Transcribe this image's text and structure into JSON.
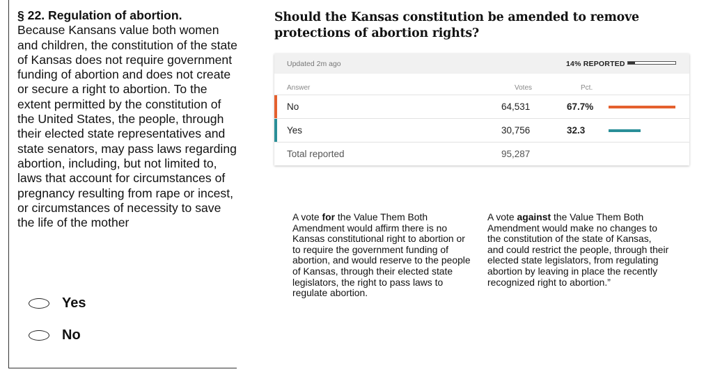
{
  "ballot": {
    "heading": "§ 22. Regulation of abortion.",
    "body": "Because Kansans value both women and children, the constitution of the state of Kansas does not require government funding of abortion and does not create or secure a right to abortion. To the extent permitted by the constitution of the United States, the people, through their elected state representatives and state senators, may pass laws regarding abortion, including, but not limited to, laws that account for circumstances of pregnancy resulting from rape or incest, or circumstances of necessity to save the life of the mother",
    "options": [
      "Yes",
      "No"
    ]
  },
  "results": {
    "question": "Should the Kansas constitution be amended to remove protections of abortion rights?",
    "updated": "Updated 2m ago",
    "reported_label": "14% REPORTED",
    "reported_fraction": 0.14,
    "columns": {
      "answer": "Answer",
      "votes": "Votes",
      "pct": "Pct."
    },
    "rows": [
      {
        "answer": "No",
        "votes": "64,531",
        "pct": "67.7%",
        "pct_value": 67.7,
        "color": "#e4602e"
      },
      {
        "answer": "Yes",
        "votes": "30,756",
        "pct": "32.3",
        "pct_value": 32.3,
        "color": "#2a8f98"
      }
    ],
    "total": {
      "label": "Total reported",
      "votes": "95,287"
    }
  },
  "explanations": {
    "for": {
      "prefix": "A vote ",
      "emphasis": "for",
      "rest": " the Value Them Both Amendment would affirm there is no Kansas constitutional right to abortion or to require the government funding of abortion, and would reserve to the people of Kansas, through their elected state legislators, the right to pass laws to regulate abortion."
    },
    "against": {
      "prefix": "A vote ",
      "emphasis": "against",
      "rest": " the Value Them Both Amendment would make no changes to the constitution of the state of Kansas, and could restrict the people, through their elected state legislators, from regulating abortion by leaving in place the recently recognized right to abortion.”"
    }
  }
}
